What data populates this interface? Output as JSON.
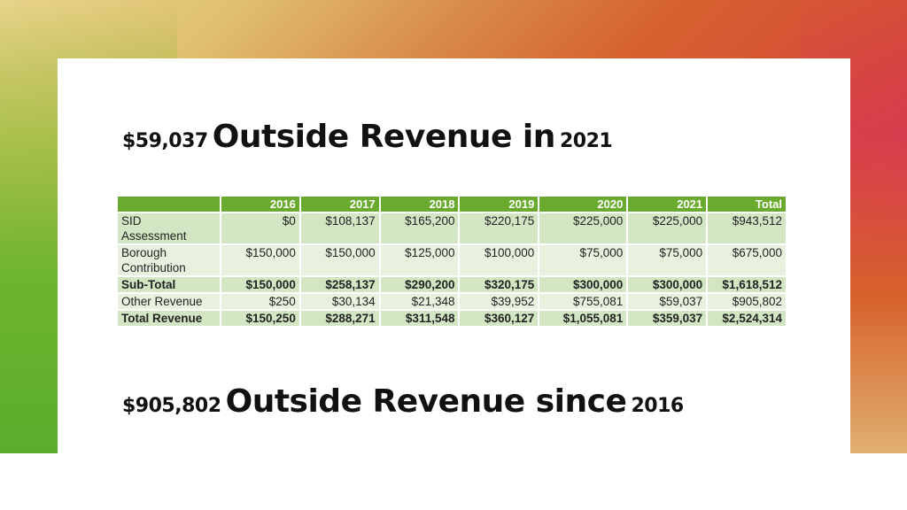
{
  "headline_top": {
    "amount": "$59,037",
    "text": "Outside Revenue in",
    "year": "2021"
  },
  "headline_bottom": {
    "amount": "$905,802",
    "text": "Outside Revenue since",
    "year": "2016"
  },
  "table": {
    "headers": [
      "",
      "2016",
      "2017",
      "2018",
      "2019",
      "2020",
      "2021",
      "Total"
    ],
    "rows": [
      {
        "label_lines": [
          "SID",
          "Assessment"
        ],
        "values": [
          "$0",
          "$108,137",
          "$165,200",
          "$220,175",
          "$225,000",
          "$225,000",
          "$943,512"
        ]
      },
      {
        "label_lines": [
          "Borough",
          "Contribution"
        ],
        "values": [
          "$150,000",
          "$150,000",
          "$125,000",
          "$100,000",
          "$75,000",
          "$75,000",
          "$675,000"
        ]
      },
      {
        "label": "Sub-Total",
        "values": [
          "$150,000",
          "$258,137",
          "$290,200",
          "$320,175",
          "$300,000",
          "$300,000",
          "$1,618,512"
        ]
      },
      {
        "label": "Other Revenue",
        "values": [
          "$250",
          "$30,134",
          "$21,348",
          "$39,952",
          "$755,081",
          "$59,037",
          "$905,802"
        ]
      },
      {
        "label": "Total Revenue",
        "values": [
          "$150,250",
          "$288,271",
          "$311,548",
          "$360,127",
          "$1,055,081",
          "$359,037",
          "$2,524,314"
        ]
      }
    ]
  },
  "colors": {
    "header_green": "#6aaa2e",
    "row_dark": "#d3e6c4",
    "row_light": "#e7f1de"
  }
}
